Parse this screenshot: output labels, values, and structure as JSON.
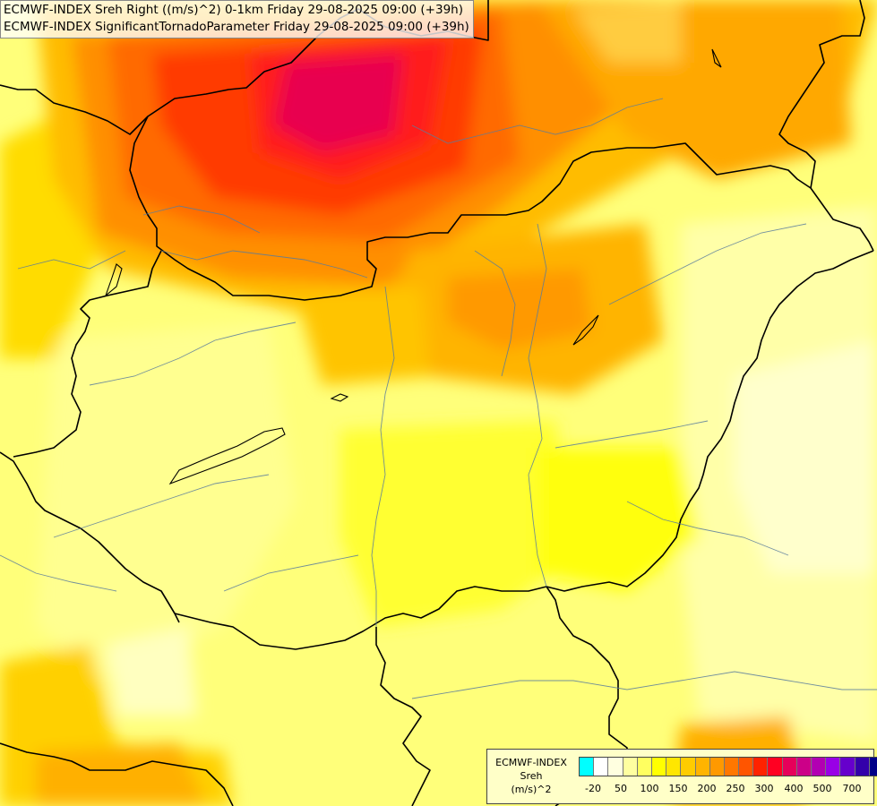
{
  "title_lines": [
    "ECMWF-INDEX Sreh Right ((m/s)^2) 0-1km Friday 29-08-2025 09:00 (+39h)",
    "ECMWF-INDEX SignificantTornadoParameter Friday 29-08-2025 09:00 (+39h)"
  ],
  "legend": {
    "line1": "ECMWF-INDEX",
    "line2": "Sreh",
    "line3": "(m/s)^2",
    "colors": [
      "#00ffff",
      "#ffffff",
      "#ffffe0",
      "#ffffa0",
      "#ffff60",
      "#ffff00",
      "#ffe600",
      "#ffcc00",
      "#ffb400",
      "#ff9900",
      "#ff7700",
      "#ff5500",
      "#ff2200",
      "#ff0022",
      "#e6005a",
      "#cc0088",
      "#b200b2",
      "#9900e6",
      "#6600cc",
      "#3300aa",
      "#000088"
    ],
    "tick_labels": [
      "-20",
      "50",
      "100",
      "150",
      "200",
      "250",
      "300",
      "400",
      "500",
      "700"
    ]
  }
}
